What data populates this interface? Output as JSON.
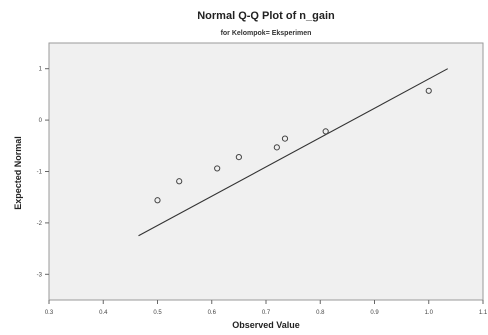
{
  "chart_data": {
    "type": "scatter",
    "title": "Normal Q-Q Plot of n_gain",
    "subtitle": "for Kelompok= Eksperimen",
    "xlabel": "Observed Value",
    "ylabel": "Expected Normal",
    "xlim": [
      0.3,
      1.1
    ],
    "ylim": [
      -3.5,
      1.5
    ],
    "x_ticks": [
      {
        "value": 0.3,
        "label": "0.3"
      },
      {
        "value": 0.4,
        "label": "0.4"
      },
      {
        "value": 0.5,
        "label": "0.5"
      },
      {
        "value": 0.6,
        "label": "0.6"
      },
      {
        "value": 0.7,
        "label": "0.7"
      },
      {
        "value": 0.8,
        "label": "0.8"
      },
      {
        "value": 0.9,
        "label": "0.9"
      },
      {
        "value": 1.0,
        "label": "1.0"
      },
      {
        "value": 1.1,
        "label": "1.1"
      }
    ],
    "y_ticks": [
      {
        "value": 1,
        "label": "1"
      },
      {
        "value": 0,
        "label": "0"
      },
      {
        "value": -1,
        "label": "-1"
      },
      {
        "value": -2,
        "label": "-2"
      },
      {
        "value": -3,
        "label": "-3"
      }
    ],
    "grid": false,
    "background_color": "#f0f0f0",
    "point_color": "#444444",
    "line_color": "#333333",
    "points": [
      {
        "x": 0.5,
        "y": -1.56
      },
      {
        "x": 0.54,
        "y": -1.19
      },
      {
        "x": 0.61,
        "y": -0.94
      },
      {
        "x": 0.65,
        "y": -0.72
      },
      {
        "x": 0.72,
        "y": -0.53
      },
      {
        "x": 0.735,
        "y": -0.36
      },
      {
        "x": 0.81,
        "y": -0.22
      },
      {
        "x": 1.0,
        "y": 0.57
      }
    ],
    "reference_line": {
      "x": [
        0.465,
        1.035
      ],
      "y": [
        -2.25,
        1.0
      ]
    }
  }
}
